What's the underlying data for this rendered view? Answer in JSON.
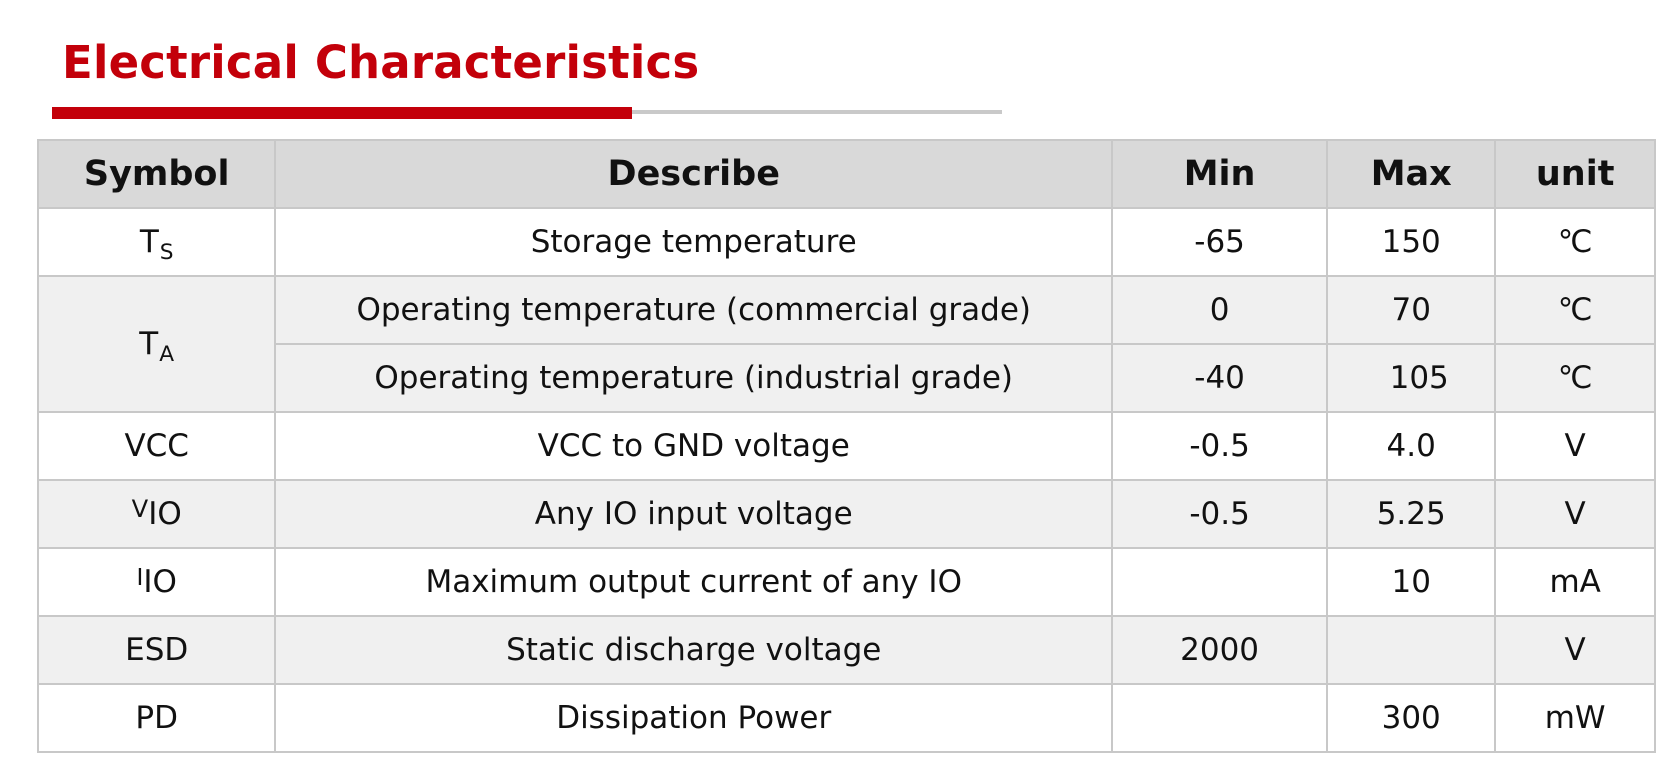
{
  "title": "Electrical Characteristics",
  "colors": {
    "title": "#c3000a",
    "accent_rule": "#c3000a",
    "grey_rule": "#c9c9c9",
    "header_bg": "#d9d9d9",
    "row_white": "#ffffff",
    "row_grey": "#f0f0f0",
    "border": "#c8c8c8"
  },
  "table": {
    "headers": {
      "symbol": "Symbol",
      "describe": "Describe",
      "min": "Min",
      "max": "Max",
      "unit": "unit"
    },
    "rows": [
      {
        "symbol_base": "T",
        "symbol_sub": "S",
        "describe": "Storage temperature",
        "min": "-65",
        "max": "150",
        "unit": "℃"
      },
      {
        "symbol_base": "T",
        "symbol_sub": "A",
        "describe": "Operating temperature (commercial grade)",
        "min": "0",
        "max": "70",
        "unit": "℃"
      },
      {
        "describe": "Operating temperature (industrial grade)",
        "min": "-40",
        "max": "105",
        "unit": "℃"
      },
      {
        "symbol": "VCC",
        "describe": "VCC to GND voltage",
        "min": "-0.5",
        "max": "4.0",
        "unit": "V"
      },
      {
        "symbol_base": "V",
        "symbol_sub": "IO",
        "describe": "Any IO input voltage",
        "min": "-0.5",
        "max": "5.25",
        "unit": "V"
      },
      {
        "symbol_base": "I",
        "symbol_sub": "IO",
        "describe": "Maximum output current of any IO",
        "min": "",
        "max": "10",
        "unit": "mA"
      },
      {
        "symbol": "ESD",
        "describe": "Static discharge voltage",
        "min": "2000",
        "max": "",
        "unit": "V"
      },
      {
        "symbol": "PD",
        "describe": "Dissipation Power",
        "min": "",
        "max": "300",
        "unit": "mW"
      }
    ]
  }
}
